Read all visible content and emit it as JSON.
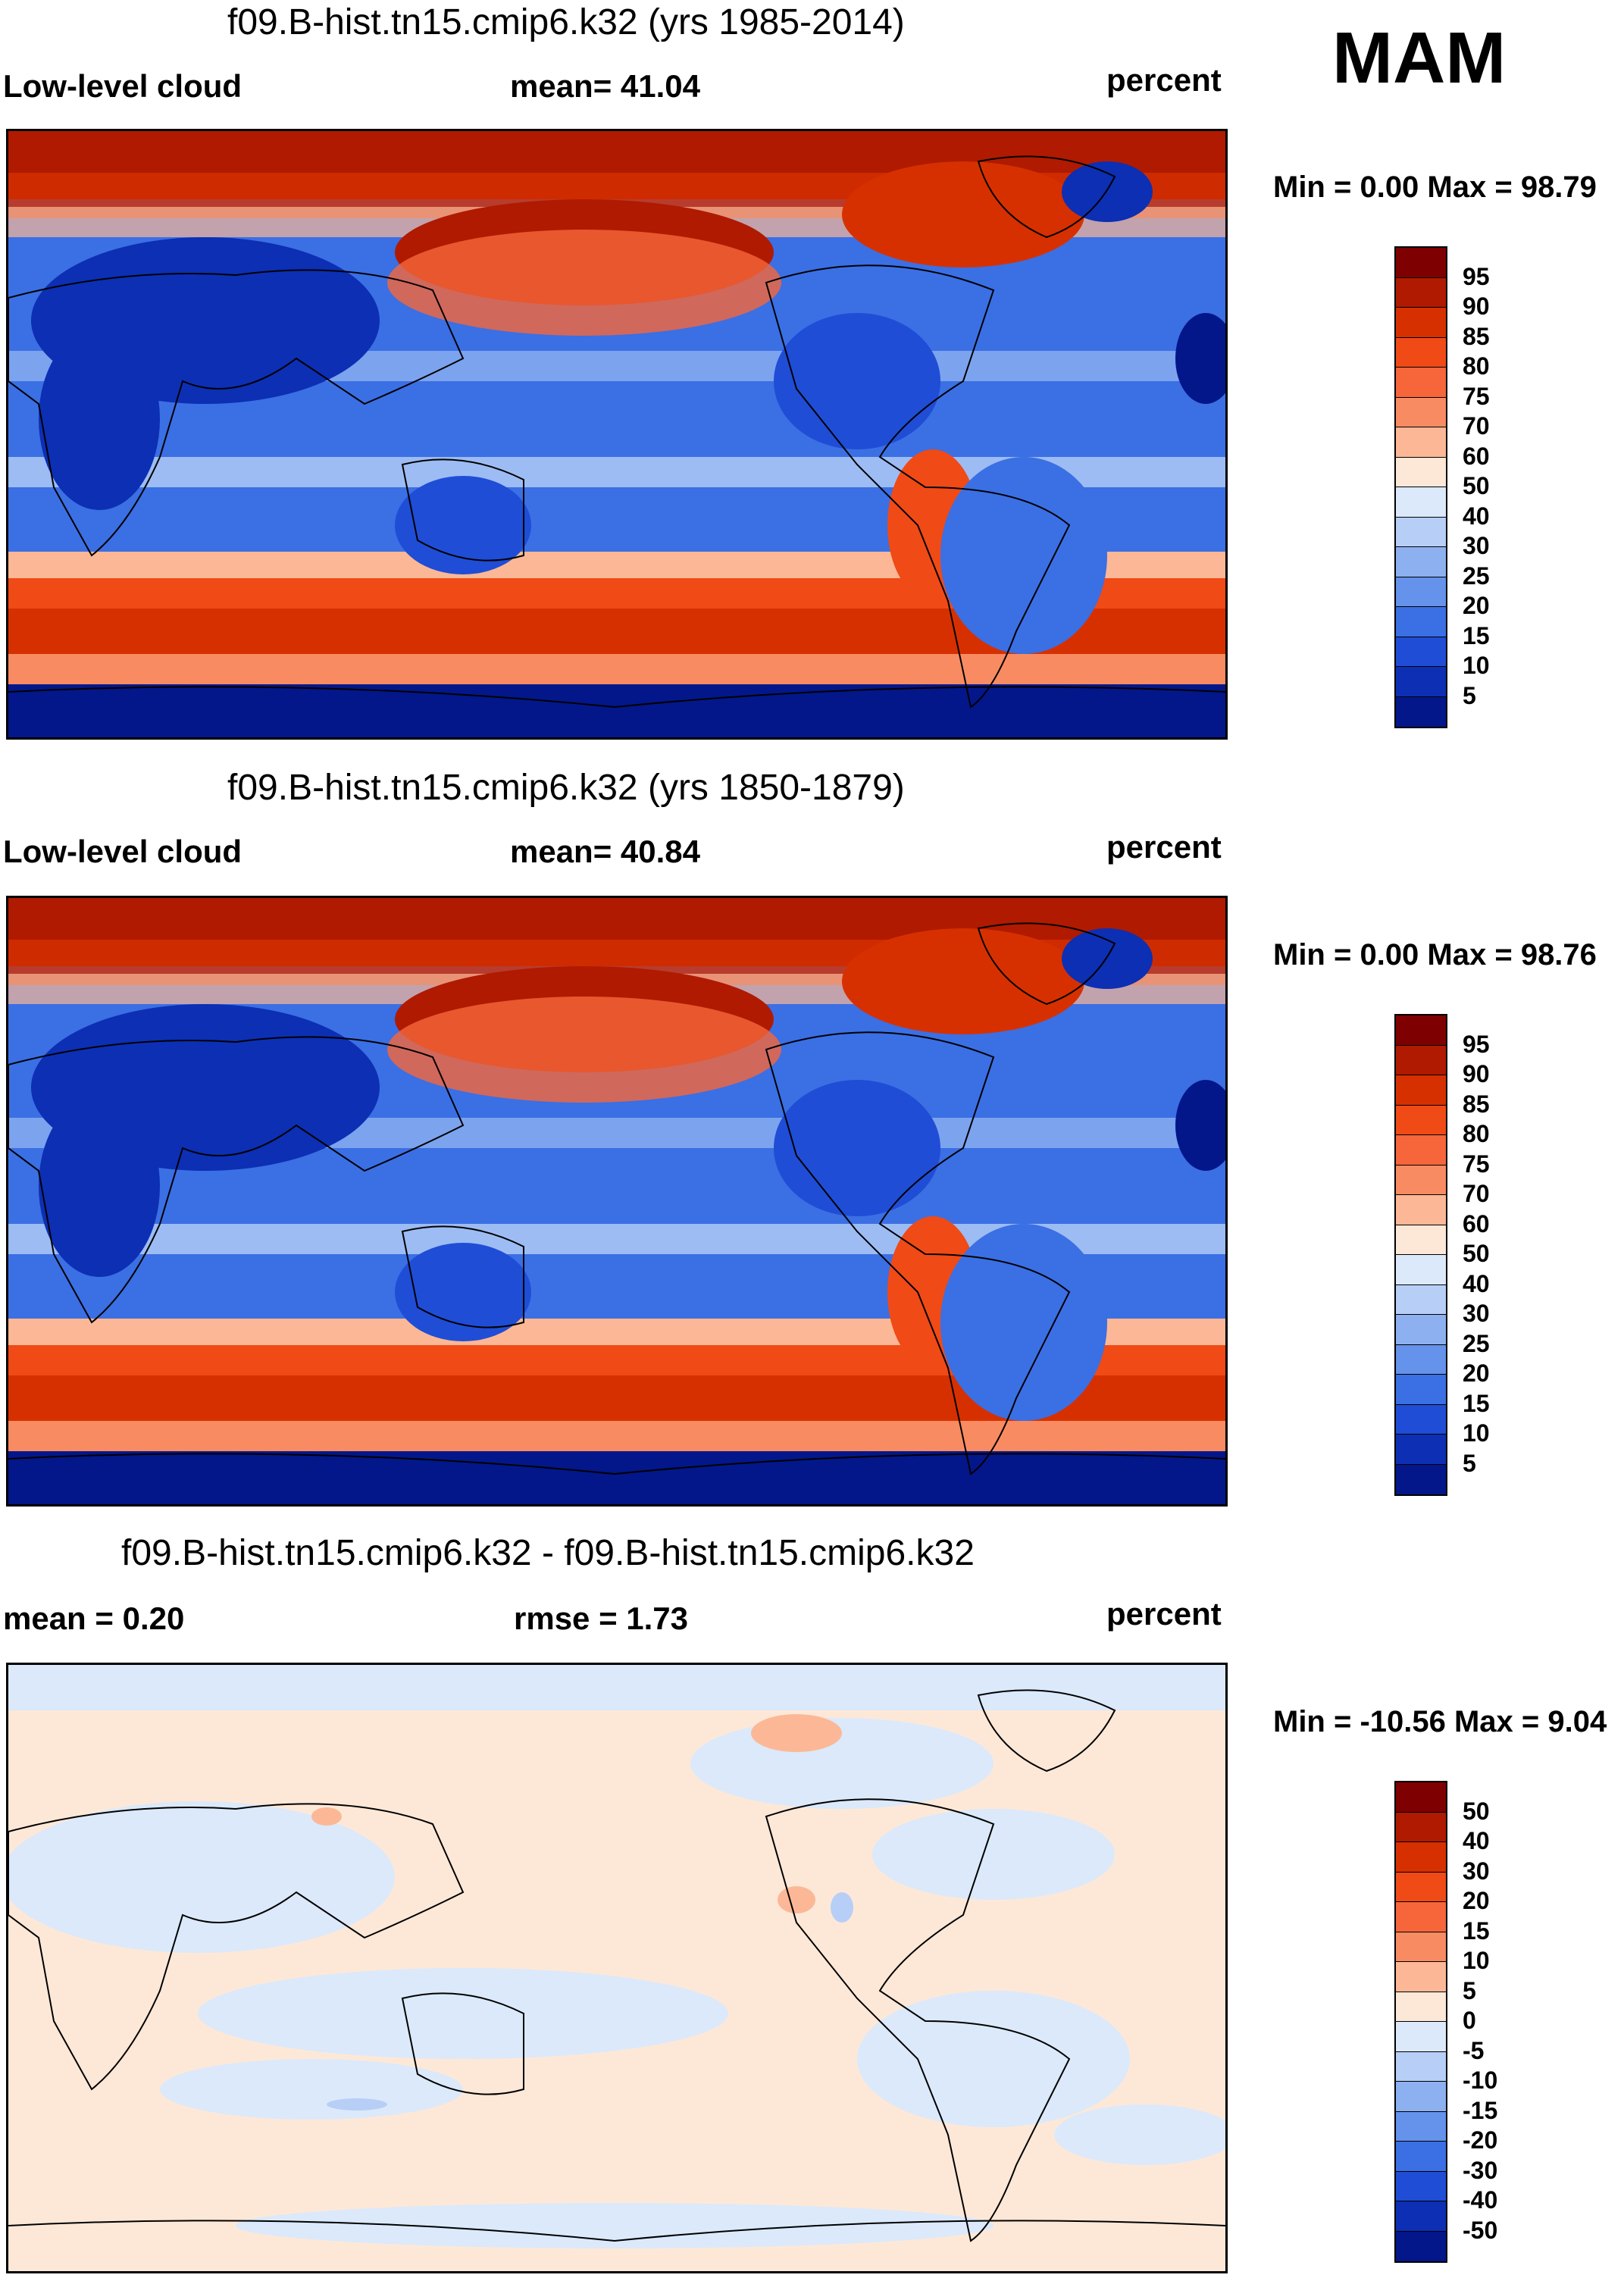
{
  "season": "MAM",
  "panels": [
    {
      "title": "f09.B-hist.tn15.cmip6.k32 (yrs 1985-2014)",
      "left_label": "Low-level cloud",
      "center_label": "mean=  41.04",
      "units": "percent",
      "minmax": "Min =   0.00 Max =  98.79",
      "colorbar": {
        "ticks": [
          "95",
          "90",
          "85",
          "80",
          "75",
          "70",
          "60",
          "50",
          "40",
          "30",
          "25",
          "20",
          "15",
          "10",
          "5"
        ],
        "colors": [
          "#7f0000",
          "#b01a00",
          "#d73000",
          "#f04a16",
          "#f6663a",
          "#f98b62",
          "#fcb896",
          "#fde8d8",
          "#dbe9fa",
          "#b7cff6",
          "#8db0f0",
          "#6592ea",
          "#3b6fe4",
          "#1f4dd6",
          "#0c2fb4",
          "#03178a"
        ]
      }
    },
    {
      "title": "f09.B-hist.tn15.cmip6.k32 (yrs 1850-1879)",
      "left_label": "Low-level cloud",
      "center_label": "mean=  40.84",
      "units": "percent",
      "minmax": "Min =   0.00 Max =  98.76",
      "colorbar": {
        "ticks": [
          "95",
          "90",
          "85",
          "80",
          "75",
          "70",
          "60",
          "50",
          "40",
          "30",
          "25",
          "20",
          "15",
          "10",
          "5"
        ],
        "colors": [
          "#7f0000",
          "#b01a00",
          "#d73000",
          "#f04a16",
          "#f6663a",
          "#f98b62",
          "#fcb896",
          "#fde8d8",
          "#dbe9fa",
          "#b7cff6",
          "#8db0f0",
          "#6592ea",
          "#3b6fe4",
          "#1f4dd6",
          "#0c2fb4",
          "#03178a"
        ]
      }
    },
    {
      "title": "f09.B-hist.tn15.cmip6.k32 - f09.B-hist.tn15.cmip6.k32",
      "left_label": "mean =   0.20",
      "center_label": "rmse =   1.73",
      "units": "percent",
      "minmax": "Min = -10.56 Max =   9.04",
      "colorbar": {
        "ticks": [
          "50",
          "40",
          "30",
          "20",
          "15",
          "10",
          "5",
          "0",
          "-5",
          "-10",
          "-15",
          "-20",
          "-30",
          "-40",
          "-50"
        ],
        "colors": [
          "#7f0000",
          "#b01a00",
          "#d73000",
          "#f04a16",
          "#f6663a",
          "#f98b62",
          "#fcb896",
          "#fde8d8",
          "#dbe9fa",
          "#b7cff6",
          "#8db0f0",
          "#6592ea",
          "#3b6fe4",
          "#1f4dd6",
          "#0c2fb4",
          "#03178a"
        ]
      }
    }
  ]
}
